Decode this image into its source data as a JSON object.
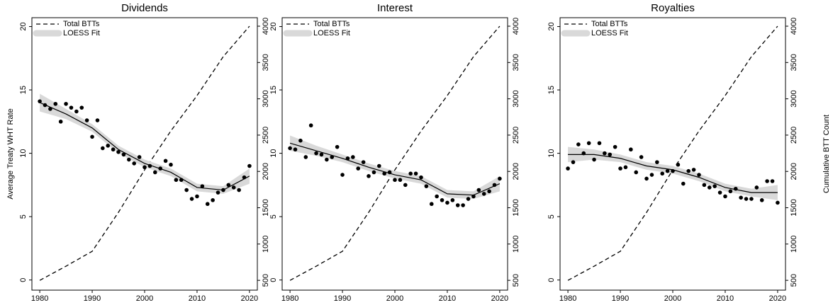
{
  "chart_data": [
    {
      "type": "scatter",
      "title": "Dividends",
      "ylabel": "Average Treaty WHT Rate",
      "legend": "top left",
      "xlim": [
        1978.5,
        2021.5
      ],
      "xticks": [
        1980,
        1990,
        2000,
        2010,
        2020
      ],
      "ylim": [
        -0.8,
        20.7
      ],
      "yticks": [
        0,
        5,
        10,
        15,
        20
      ],
      "y2lim": [
        365,
        4117
      ],
      "y2ticks": [
        500,
        1000,
        1500,
        2000,
        2500,
        3000,
        3500,
        4000
      ],
      "x": [
        1980,
        1981,
        1982,
        1983,
        1984,
        1985,
        1986,
        1987,
        1988,
        1989,
        1990,
        1991,
        1992,
        1993,
        1994,
        1995,
        1996,
        1997,
        1998,
        1999,
        2000,
        2001,
        2002,
        2003,
        2004,
        2005,
        2006,
        2007,
        2008,
        2009,
        2010,
        2011,
        2012,
        2013,
        2014,
        2015,
        2016,
        2017,
        2018,
        2019,
        2020
      ],
      "series": [
        {
          "name": "Total BTTs",
          "axis": "y2",
          "style": "dashed",
          "color": "#000000",
          "x": [
            1980,
            1985,
            1990,
            1995,
            2000,
            2005,
            2010,
            2015,
            2020
          ],
          "values": [
            500,
            695,
            900,
            1436,
            2021,
            2557,
            3045,
            3581,
            4000
          ]
        },
        {
          "name": "LOESS Fit",
          "style": "band",
          "color": "#d9d9d9",
          "line_color": "#000000",
          "x": [
            1980,
            1985,
            1990,
            1995,
            2000,
            2005,
            2010,
            2015,
            2020
          ],
          "values": [
            14.0,
            13.1,
            12.0,
            10.3,
            9.2,
            8.5,
            7.3,
            7.1,
            8.2
          ],
          "lower": [
            13.3,
            12.7,
            11.7,
            10.0,
            8.9,
            8.2,
            7.0,
            6.8,
            7.6
          ],
          "upper": [
            14.7,
            13.5,
            12.3,
            10.6,
            9.5,
            8.8,
            7.6,
            7.4,
            8.8
          ]
        },
        {
          "style": "points",
          "color": "#000000",
          "values": [
            14.1,
            13.8,
            13.5,
            13.9,
            12.5,
            13.9,
            13.6,
            13.3,
            13.6,
            12.6,
            11.3,
            12.6,
            10.4,
            10.6,
            10.3,
            10.1,
            9.9,
            9.5,
            9.2,
            9.7,
            8.9,
            9.0,
            8.5,
            8.8,
            9.4,
            9.1,
            7.9,
            7.9,
            7.1,
            6.4,
            6.6,
            7.4,
            6.0,
            6.3,
            6.9,
            7.1,
            7.5,
            7.3,
            7.1,
            8.1,
            9.0
          ]
        }
      ]
    },
    {
      "type": "scatter",
      "title": "Interest",
      "legend": "top left",
      "xlim": [
        1978.5,
        2021.5
      ],
      "xticks": [
        1980,
        1990,
        2000,
        2010,
        2020
      ],
      "ylim": [
        -0.8,
        20.7
      ],
      "yticks": [
        0,
        5,
        10,
        15,
        20
      ],
      "y2lim": [
        365,
        4117
      ],
      "y2ticks": [
        500,
        1000,
        1500,
        2000,
        2500,
        3000,
        3500,
        4000
      ],
      "x": [
        1980,
        1981,
        1982,
        1983,
        1984,
        1985,
        1986,
        1987,
        1988,
        1989,
        1990,
        1991,
        1992,
        1993,
        1994,
        1995,
        1996,
        1997,
        1998,
        1999,
        2000,
        2001,
        2002,
        2003,
        2004,
        2005,
        2006,
        2007,
        2008,
        2009,
        2010,
        2011,
        2012,
        2013,
        2014,
        2015,
        2016,
        2017,
        2018,
        2019,
        2020
      ],
      "series": [
        {
          "name": "Total BTTs",
          "axis": "y2",
          "style": "dashed",
          "color": "#000000",
          "x": [
            1980,
            1985,
            1990,
            1995,
            2000,
            2005,
            2010,
            2015,
            2020
          ],
          "values": [
            500,
            695,
            900,
            1436,
            2021,
            2557,
            3045,
            3581,
            4000
          ]
        },
        {
          "name": "LOESS Fit",
          "style": "band",
          "color": "#d9d9d9",
          "line_color": "#000000",
          "x": [
            1980,
            1985,
            1990,
            1995,
            2000,
            2005,
            2010,
            2015,
            2020
          ],
          "values": [
            10.8,
            10.2,
            9.6,
            8.9,
            8.3,
            7.9,
            6.8,
            6.7,
            7.6
          ],
          "lower": [
            10.2,
            9.8,
            9.3,
            8.6,
            8.0,
            7.6,
            6.5,
            6.4,
            7.0
          ],
          "upper": [
            11.4,
            10.6,
            9.9,
            9.2,
            8.6,
            8.2,
            7.1,
            7.0,
            8.2
          ]
        },
        {
          "style": "points",
          "color": "#000000",
          "values": [
            10.4,
            10.3,
            11.0,
            9.7,
            12.2,
            10.0,
            9.9,
            9.5,
            9.7,
            10.5,
            8.3,
            9.6,
            9.7,
            8.8,
            9.3,
            8.2,
            8.5,
            9.0,
            8.4,
            8.5,
            7.9,
            7.9,
            7.5,
            8.4,
            8.4,
            8.1,
            7.4,
            6.0,
            6.6,
            6.3,
            6.1,
            6.3,
            5.9,
            5.9,
            6.4,
            6.6,
            7.1,
            6.8,
            7.0,
            7.5,
            8.0
          ]
        }
      ]
    },
    {
      "type": "scatter",
      "title": "Royalties",
      "y2label": "Cumulative BTT Count",
      "legend": "top left",
      "xlim": [
        1978.5,
        2021.5
      ],
      "xticks": [
        1980,
        1990,
        2000,
        2010,
        2020
      ],
      "ylim": [
        -0.8,
        20.7
      ],
      "yticks": [
        0,
        5,
        10,
        15,
        20
      ],
      "y2lim": [
        365,
        4117
      ],
      "y2ticks": [
        500,
        1000,
        1500,
        2000,
        2500,
        3000,
        3500,
        4000
      ],
      "x": [
        1980,
        1981,
        1982,
        1983,
        1984,
        1985,
        1986,
        1987,
        1988,
        1989,
        1990,
        1991,
        1992,
        1993,
        1994,
        1995,
        1996,
        1997,
        1998,
        1999,
        2000,
        2001,
        2002,
        2003,
        2004,
        2005,
        2006,
        2007,
        2008,
        2009,
        2010,
        2011,
        2012,
        2013,
        2014,
        2015,
        2016,
        2017,
        2018,
        2019,
        2020
      ],
      "series": [
        {
          "name": "Total BTTs",
          "axis": "y2",
          "style": "dashed",
          "color": "#000000",
          "x": [
            1980,
            1985,
            1990,
            1995,
            2000,
            2005,
            2010,
            2015,
            2020
          ],
          "values": [
            500,
            695,
            900,
            1436,
            2021,
            2557,
            3045,
            3581,
            4000
          ]
        },
        {
          "name": "LOESS Fit",
          "style": "band",
          "color": "#d9d9d9",
          "line_color": "#000000",
          "x": [
            1980,
            1985,
            1990,
            1995,
            2000,
            2005,
            2010,
            2015,
            2020
          ],
          "values": [
            9.9,
            9.9,
            9.6,
            9.0,
            8.7,
            8.1,
            7.3,
            6.9,
            6.9
          ],
          "lower": [
            9.3,
            9.5,
            9.3,
            8.7,
            8.4,
            7.8,
            7.0,
            6.6,
            6.3
          ],
          "upper": [
            10.5,
            10.3,
            9.9,
            9.3,
            9.0,
            8.4,
            7.6,
            7.2,
            7.5
          ]
        },
        {
          "style": "points",
          "color": "#000000",
          "values": [
            8.8,
            9.3,
            10.7,
            10.0,
            10.8,
            9.5,
            10.8,
            10.0,
            9.9,
            10.5,
            8.8,
            8.9,
            10.3,
            8.5,
            9.7,
            8.0,
            8.3,
            9.3,
            8.4,
            8.6,
            8.6,
            9.1,
            7.6,
            8.6,
            8.7,
            8.3,
            7.5,
            7.3,
            7.4,
            6.9,
            6.6,
            7.0,
            7.2,
            6.5,
            6.4,
            6.4,
            7.3,
            6.3,
            7.8,
            7.8,
            6.1
          ]
        }
      ]
    }
  ]
}
